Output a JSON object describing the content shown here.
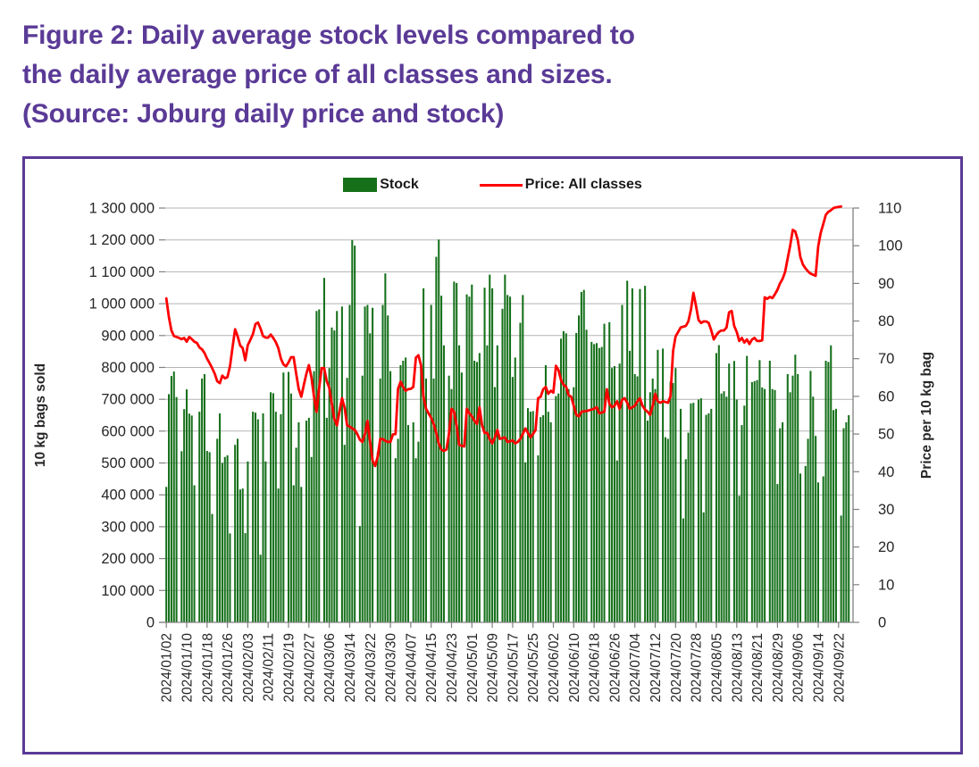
{
  "title": {
    "line1": "Figure 2: Daily average stock levels compared to",
    "line2": "the daily average price of all classes and sizes.",
    "line3": "(Source: Joburg daily price and stock)"
  },
  "colors": {
    "accent_purple": "#5a3a96",
    "bar_green": "#15701a",
    "line_red": "#fe0000",
    "grid_gray": "#b3b3b3",
    "axis_gray": "#808080",
    "text_dark": "#262626"
  },
  "legend": {
    "stock_label": "Stock",
    "price_label": "Price: All classes"
  },
  "chart_data": {
    "type": "bar+line combo",
    "grid": true,
    "legend_position": "top-center",
    "x_axis": {
      "start_date": "2024/01/02",
      "tick_interval_days": 8,
      "n_points": 269,
      "tick_labels": [
        "2024/01/02",
        "2024/01/10",
        "2024/01/18",
        "2024/01/26",
        "2024/02/03",
        "2024/02/11",
        "2024/02/19",
        "2024/02/27",
        "2024/03/06",
        "2024/03/14",
        "2024/03/22",
        "2024/03/30",
        "2024/04/07",
        "2024/04/15",
        "2024/04/23",
        "2024/05/01",
        "2024/05/09",
        "2024/05/17",
        "2024/05/25",
        "2024/06/02",
        "2024/06/10",
        "2024/06/18",
        "2024/06/26",
        "2024/07/04",
        "2024/07/12",
        "2024/07/20",
        "2024/07/28",
        "2024/08/05",
        "2024/08/13",
        "2024/08/21",
        "2024/08/29",
        "2024/09/06",
        "2024/09/14",
        "2024/09/22"
      ]
    },
    "left_axis": {
      "title": "10 kg bags sold",
      "min": 0,
      "max": 1300000,
      "step": 100000,
      "tick_labels": [
        "0",
        "100 000",
        "200 000",
        "300 000",
        "400 000",
        "500 000",
        "600 000",
        "700 000",
        "800 000",
        "900 000",
        "1 000 000",
        "1 100 000",
        "1 200 000",
        "1 300 000"
      ]
    },
    "right_axis": {
      "title": "Price per 10 kg bag",
      "min": 0,
      "max": 110,
      "step": 10,
      "tick_labels": [
        "0",
        "10",
        "20",
        "30",
        "40",
        "50",
        "60",
        "70",
        "80",
        "90",
        "100",
        "110"
      ]
    },
    "series": [
      {
        "name": "Stock",
        "type": "bar",
        "axis": "left",
        "color": "#15701a",
        "values": [
          425000,
          716000,
          773000,
          787000,
          707000,
          0,
          537000,
          669000,
          731000,
          655000,
          649000,
          430000,
          0,
          661000,
          765000,
          779000,
          538000,
          534000,
          340000,
          0,
          576000,
          656000,
          500000,
          519000,
          524000,
          279000,
          0,
          557000,
          576000,
          417000,
          420000,
          280000,
          505000,
          0,
          661000,
          658000,
          637000,
          212000,
          656000,
          505000,
          0,
          722000,
          719000,
          661000,
          420000,
          653000,
          784000,
          0,
          786000,
          718000,
          430000,
          548000,
          628000,
          425000,
          0,
          633000,
          642000,
          519000,
          788000,
          977000,
          982000,
          0,
          1081000,
          642000,
          798000,
          925000,
          916000,
          977000,
          0,
          991000,
          557000,
          767000,
          996000,
          1199000,
          1182000,
          0,
          302000,
          774000,
          991000,
          996000,
          907000,
          987000,
          0,
          534000,
          765000,
          996000,
          1095000,
          963000,
          788000,
          0,
          515000,
          576000,
          807000,
          821000,
          831000,
          619000,
          0,
          628000,
          515000,
          567000,
          814000,
          1048000,
          765000,
          0,
          996000,
          765000,
          1147000,
          1201000,
          1025000,
          869000,
          0,
          774000,
          732000,
          1069000,
          1065000,
          869000,
          784000,
          0,
          1029000,
          1022000,
          1060000,
          821000,
          817000,
          845000,
          0,
          1050000,
          869000,
          1091000,
          1048000,
          738000,
          869000,
          0,
          984000,
          1091000,
          1027000,
          1022000,
          770000,
          831000,
          0,
          940000,
          1027000,
          502000,
          672000,
          661000,
          663000,
          0,
          524000,
          644000,
          650000,
          807000,
          661000,
          628000,
          0,
          710000,
          718000,
          890000,
          914000,
          907000,
          732000,
          0,
          738000,
          908000,
          963000,
          1037000,
          1043000,
          918000,
          0,
          880000,
          873000,
          876000,
          861000,
          864000,
          937000,
          0,
          942000,
          798000,
          804000,
          508000,
          812000,
          996000,
          0,
          1072000,
          852000,
          1048000,
          779000,
          772000,
          1046000,
          0,
          1056000,
          633000,
          722000,
          765000,
          732000,
          855000,
          0,
          859000,
          581000,
          576000,
          755000,
          751000,
          798000,
          0,
          670000,
          326000,
          512000,
          595000,
          687000,
          689000,
          0,
          699000,
          703000,
          345000,
          651000,
          656000,
          670000,
          0,
          845000,
          870000,
          718000,
          725000,
          708000,
          812000,
          0,
          820000,
          699000,
          397000,
          619000,
          680000,
          836000,
          0,
          754000,
          757000,
          760000,
          823000,
          737000,
          732000,
          0,
          821000,
          732000,
          729000,
          434000,
          609000,
          628000,
          0,
          779000,
          722000,
          774000,
          840000,
          779000,
          467000,
          0,
          491000,
          576000,
          789000,
          708000,
          585000,
          439000,
          0,
          458000,
          821000,
          817000,
          869000,
          666000,
          670000,
          0,
          335000,
          609000,
          628000,
          650000
        ]
      },
      {
        "name": "Price: All classes",
        "type": "line",
        "axis": "right",
        "color": "#fe0000",
        "values": [
          86,
          81,
          77.5,
          76,
          75.8,
          75.5,
          75.2,
          75.5,
          74.5,
          75.8,
          75.2,
          74.5,
          74.2,
          73,
          72.5,
          71.5,
          70,
          68.8,
          67.5,
          66,
          64,
          63.5,
          65.5,
          64.8,
          65.1,
          68,
          73,
          77.8,
          76,
          73.5,
          72.8,
          69.6,
          73.6,
          75,
          76.5,
          79.2,
          79.6,
          78,
          76,
          75.6,
          75.6,
          76.4,
          75.5,
          74.4,
          72.8,
          70,
          68.5,
          68,
          69,
          70.4,
          70.4,
          66,
          62,
          59.9,
          63,
          66,
          68.3,
          65,
          60,
          55.9,
          62,
          67.5,
          67.5,
          64,
          62.3,
          58,
          54,
          52.3,
          56,
          59.5,
          57,
          52.3,
          52,
          51.5,
          51.1,
          50,
          48.5,
          47.9,
          50,
          53.5,
          48,
          43,
          41.5,
          44,
          48.7,
          48.7,
          48.2,
          47.9,
          47.9,
          49.9,
          50,
          62,
          63.9,
          62.5,
          61.5,
          61.9,
          62,
          62.5,
          70.3,
          70.9,
          68.3,
          59.9,
          56.7,
          55.5,
          54.3,
          52.7,
          50.3,
          47.5,
          45.9,
          45.5,
          45.9,
          50,
          56.7,
          55.9,
          52.3,
          47.1,
          46.9,
          46.7,
          56.7,
          55.5,
          54.7,
          53.5,
          52.7,
          57.1,
          52.3,
          50.3,
          50.3,
          48.7,
          47.5,
          49,
          51.1,
          48.7,
          48.9,
          49.1,
          47.9,
          48.1,
          48.3,
          47.5,
          47.9,
          48.7,
          50,
          51.5,
          50.3,
          49.1,
          50,
          51.1,
          59.5,
          59.9,
          61.9,
          62.5,
          60.7,
          61.5,
          61,
          68.1,
          67,
          64.3,
          63.1,
          62.5,
          60.3,
          59.9,
          57.5,
          55.1,
          54.7,
          55.9,
          56,
          56.1,
          56.3,
          56.5,
          56.7,
          57.1,
          55.5,
          55.7,
          55.9,
          61.9,
          58,
          57.1,
          57.5,
          58.7,
          56.7,
          59.1,
          59.5,
          58.3,
          56.7,
          57.1,
          57.5,
          58.7,
          59.5,
          57.5,
          56.5,
          55.9,
          55.1,
          57.5,
          60.7,
          58.7,
          58.3,
          58.7,
          58.5,
          58.3,
          60,
          72,
          75.9,
          77.1,
          78.3,
          78.5,
          78.7,
          79.9,
          83,
          87.5,
          84,
          80.3,
          79.5,
          79.9,
          79.9,
          79.5,
          77.5,
          75.1,
          76.3,
          77.1,
          77.5,
          77.5,
          78.3,
          82.3,
          82.7,
          78.7,
          77.1,
          74.7,
          75.5,
          74.3,
          75.1,
          73.9,
          75.1,
          75.5,
          74.7,
          74.7,
          74.9,
          86.3,
          85.9,
          86.4,
          86.1,
          87.1,
          88.3,
          90,
          91.2,
          93,
          96.6,
          100,
          104.2,
          103.8,
          101.4,
          97,
          95,
          94,
          93.2,
          92.6,
          92.3,
          92,
          99.8,
          103.4,
          105.8,
          108.2,
          109,
          109.4,
          110,
          110.2,
          110.3,
          110.4,
          null,
          null,
          null
        ]
      }
    ]
  }
}
